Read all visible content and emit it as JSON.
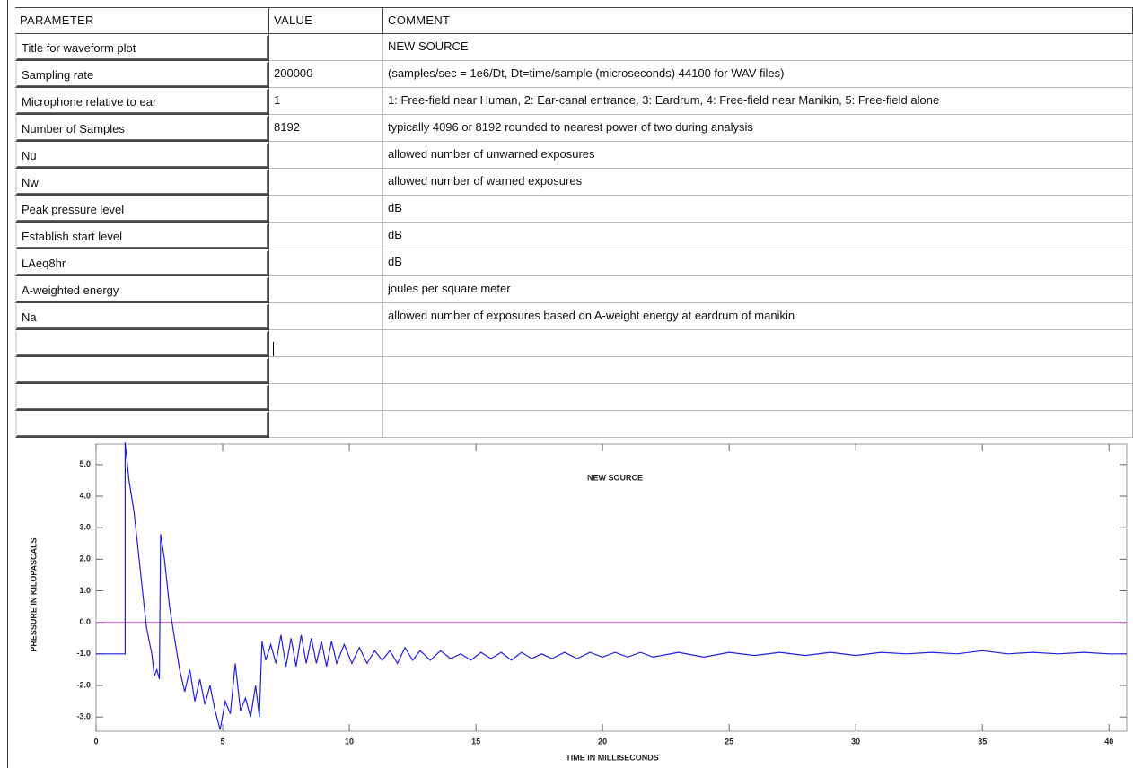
{
  "table": {
    "header": [
      "PARAMETER",
      "VALUE",
      "COMMENT"
    ],
    "rows": [
      [
        "Title for waveform plot",
        null,
        "NEW SOURCE"
      ],
      [
        "Sampling rate",
        "200000",
        "(samples/sec = 1e6/Dt, Dt=time/sample (microseconds) 44100 for WAV files)"
      ],
      [
        "Microphone relative to ear",
        "1",
        "1: Free-field near Human, 2: Ear-canal entrance, 3: Eardrum, 4: Free-field near Manikin, 5: Free-field alone"
      ],
      [
        "Number of Samples",
        "8192",
        "typically 4096 or 8192 rounded to nearest power of two during analysis"
      ],
      [
        "Nu",
        null,
        "allowed number of unwarned exposures"
      ],
      [
        "Nw",
        null,
        "allowed number of warned exposures"
      ],
      [
        "Peak pressure level",
        null,
        "dB"
      ],
      [
        "Establish start level",
        null,
        "dB"
      ],
      [
        "LAeq8hr",
        null,
        "dB"
      ],
      [
        "A-weighted energy",
        null,
        "joules per square meter"
      ],
      [
        "Na",
        null,
        "allowed number of exposures based on A-weight energy at eardrum of manikin"
      ],
      [
        null,
        null,
        null
      ],
      [
        null,
        null,
        null
      ],
      [
        null,
        null,
        null
      ],
      [
        null,
        null,
        null
      ]
    ]
  },
  "chart_data": {
    "type": "line",
    "title": "NEW SOURCE",
    "x_label": "TIME IN MILLISECONDS",
    "y_label": "PRESSURE IN KILOPASCALS",
    "color": "#1f1fe0",
    "reference_line": {
      "value": 0,
      "color": "#d958d9"
    },
    "xlim": [
      0,
      40.7
    ],
    "ylim": [
      -3.45,
      5.65
    ],
    "xticks": [
      0,
      5,
      10,
      15,
      20,
      25,
      30,
      35,
      40
    ],
    "yticks": [
      {
        "value": 5,
        "label": "5.0"
      },
      {
        "value": 4,
        "label": "4.0"
      },
      {
        "value": 3,
        "label": "3.0"
      },
      {
        "value": 2,
        "label": "2.0"
      },
      {
        "value": 1,
        "label": "1.0"
      },
      {
        "value": 0,
        "label": "0.0"
      },
      {
        "value": -1,
        "label": "-1.0"
      },
      {
        "value": -2,
        "label": "-2.0"
      },
      {
        "value": -3,
        "label": "-3.0"
      }
    ],
    "x": [
      0,
      1.15,
      1.15,
      1.3,
      1.5,
      1.7,
      1.9,
      2.0,
      2.2,
      2.3,
      2.4,
      2.5,
      2.55,
      2.7,
      2.9,
      3.1,
      3.3,
      3.5,
      3.7,
      3.9,
      4.1,
      4.3,
      4.5,
      4.7,
      4.9,
      5.1,
      5.3,
      5.5,
      5.7,
      5.9,
      6.1,
      6.3,
      6.45,
      6.55,
      6.7,
      6.9,
      7.1,
      7.3,
      7.5,
      7.7,
      7.9,
      8.1,
      8.3,
      8.5,
      8.7,
      8.9,
      9.1,
      9.3,
      9.5,
      9.8,
      10.1,
      10.4,
      10.7,
      11,
      11.3,
      11.6,
      11.9,
      12.2,
      12.5,
      12.8,
      13.2,
      13.6,
      14,
      14.4,
      14.8,
      15.2,
      15.6,
      16,
      16.4,
      16.8,
      17.2,
      17.6,
      18,
      18.5,
      19,
      19.5,
      20,
      20.5,
      21,
      21.5,
      22,
      23,
      24,
      25,
      26,
      27,
      28,
      29,
      30,
      31,
      32,
      33,
      34,
      35,
      36,
      37,
      38,
      39,
      40,
      40.7
    ],
    "values": [
      -1.0,
      -1.0,
      5.7,
      4.5,
      3.5,
      2.0,
      0.5,
      -0.2,
      -1.0,
      -1.7,
      -1.5,
      -1.8,
      2.8,
      2.0,
      0.5,
      -0.5,
      -1.5,
      -2.2,
      -1.5,
      -2.5,
      -1.8,
      -2.6,
      -2.0,
      -2.8,
      -3.4,
      -2.5,
      -2.9,
      -1.3,
      -2.8,
      -2.4,
      -3.0,
      -2.0,
      -3.0,
      -0.6,
      -1.2,
      -0.7,
      -1.3,
      -0.4,
      -1.4,
      -0.5,
      -1.4,
      -0.4,
      -1.3,
      -0.5,
      -1.3,
      -0.6,
      -1.4,
      -0.6,
      -1.3,
      -0.7,
      -1.3,
      -0.8,
      -1.3,
      -0.9,
      -1.2,
      -0.9,
      -1.3,
      -0.8,
      -1.2,
      -0.9,
      -1.2,
      -0.9,
      -1.15,
      -1.0,
      -1.2,
      -0.95,
      -1.15,
      -0.95,
      -1.2,
      -0.95,
      -1.15,
      -1.0,
      -1.15,
      -0.95,
      -1.15,
      -0.95,
      -1.1,
      -0.95,
      -1.1,
      -0.95,
      -1.1,
      -0.95,
      -1.1,
      -0.95,
      -1.05,
      -0.95,
      -1.05,
      -0.95,
      -1.05,
      -0.95,
      -1.0,
      -0.95,
      -1.0,
      -0.9,
      -1.0,
      -0.95,
      -1.0,
      -0.95,
      -1.0,
      -1.0
    ]
  }
}
